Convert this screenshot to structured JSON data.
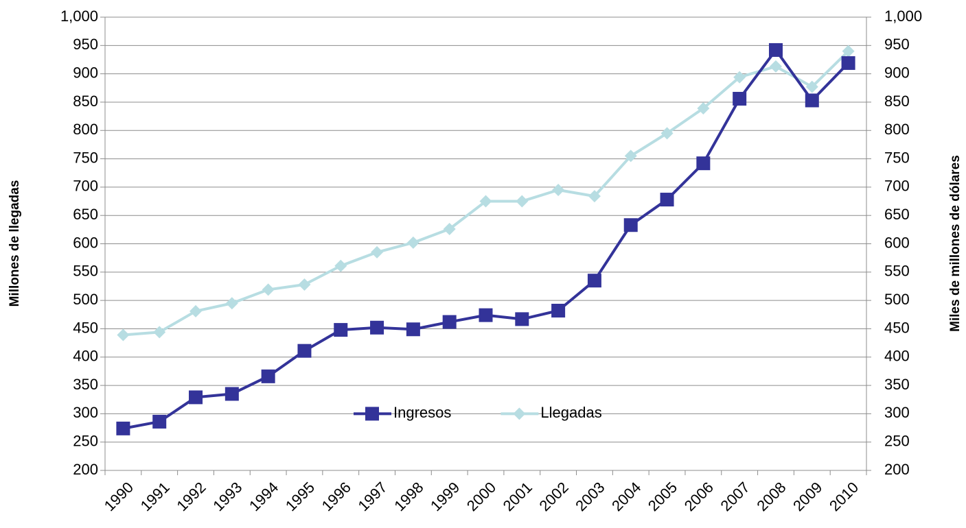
{
  "chart_data": {
    "type": "line",
    "y_label": "Millones de llegadas",
    "y2_label": "Miles de millones de dólares",
    "categories": [
      "1990",
      "1991",
      "1992",
      "1993",
      "1994",
      "1995",
      "1996",
      "1997",
      "1998",
      "1999",
      "2000",
      "2001",
      "2002",
      "2003",
      "2004",
      "2005",
      "2006",
      "2007",
      "2008",
      "2009",
      "2010"
    ],
    "series": [
      {
        "name": "Ingresos",
        "color": "#333399",
        "marker": "square",
        "axis": "y2",
        "values": [
          274,
          286,
          329,
          335,
          366,
          411,
          448,
          452,
          449,
          462,
          474,
          467,
          482,
          535,
          633,
          678,
          742,
          856,
          942,
          853,
          919
        ]
      },
      {
        "name": "Llegadas",
        "color": "#b7dde2",
        "marker": "diamond",
        "values": [
          439,
          444,
          481,
          495,
          519,
          528,
          561,
          585,
          602,
          626,
          675,
          675,
          695,
          684,
          755,
          795,
          839,
          894,
          913,
          877,
          940
        ]
      }
    ],
    "ylim": [
      200,
      1000
    ],
    "yticks": [
      200,
      250,
      300,
      350,
      400,
      450,
      500,
      550,
      600,
      650,
      700,
      750,
      800,
      850,
      900,
      950,
      {
        "value": 1000,
        "label": "1,000"
      }
    ],
    "y2lim": [
      200,
      1000
    ],
    "y2ticks": [
      200,
      250,
      300,
      350,
      400,
      450,
      500,
      550,
      600,
      650,
      700,
      750,
      800,
      850,
      900,
      950,
      {
        "value": 1000,
        "label": "1,000"
      }
    ],
    "grid": true,
    "legend": "center"
  }
}
